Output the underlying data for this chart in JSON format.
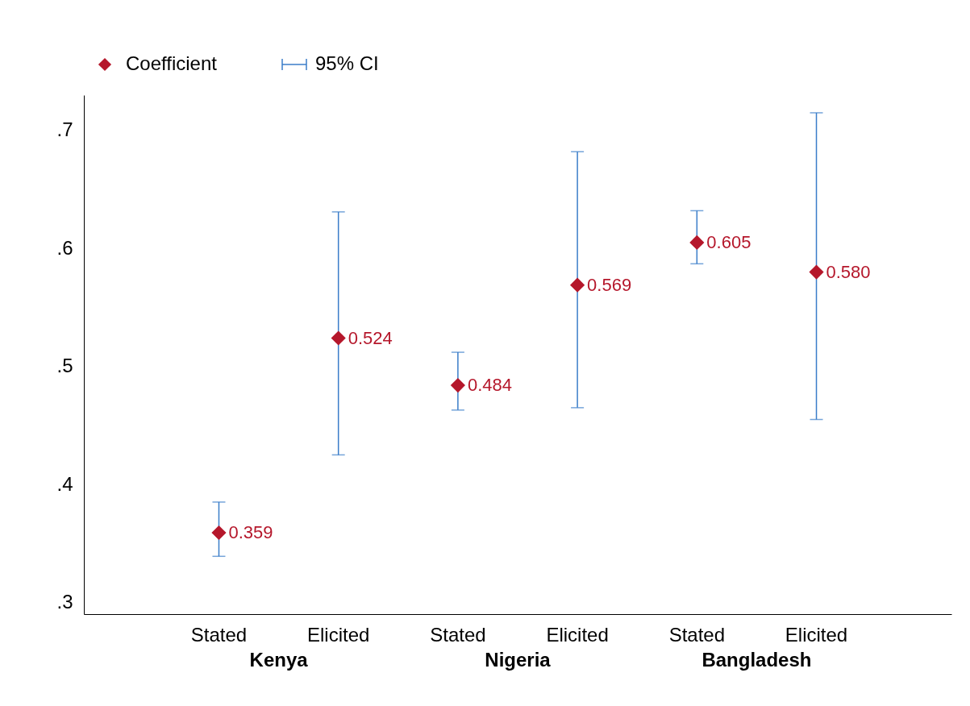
{
  "chart_data": {
    "type": "scatter",
    "categories": [
      "Stated",
      "Elicited",
      "Stated",
      "Elicited",
      "Stated",
      "Elicited"
    ],
    "series": [
      {
        "name": "Coefficient",
        "color": "#b5172b",
        "values": [
          0.359,
          0.524,
          0.484,
          0.569,
          0.605,
          0.58
        ],
        "errors": [
          [
            0.339,
            0.385
          ],
          [
            0.425,
            0.631
          ],
          [
            0.463,
            0.512
          ],
          [
            0.465,
            0.682
          ],
          [
            0.587,
            0.632
          ],
          [
            0.455,
            0.715
          ]
        ],
        "value_labels": [
          "0.359",
          "0.524",
          "0.484",
          "0.569",
          "0.605",
          "0.580"
        ]
      }
    ],
    "annotations": [
      "95% CI",
      "Kenya",
      "Nigeria",
      "Bangladesh"
    ],
    "ylim": [
      0.29,
      0.73
    ],
    "yticks": [
      {
        "value": 0.3,
        "label": ".3"
      },
      {
        "value": 0.4,
        "label": ".4"
      },
      {
        "value": 0.5,
        "label": ".5"
      },
      {
        "value": 0.6,
        "label": ".6"
      },
      {
        "value": 0.7,
        "label": ".7"
      }
    ],
    "marker": "diamond",
    "legend": "top left",
    "grid": false
  }
}
